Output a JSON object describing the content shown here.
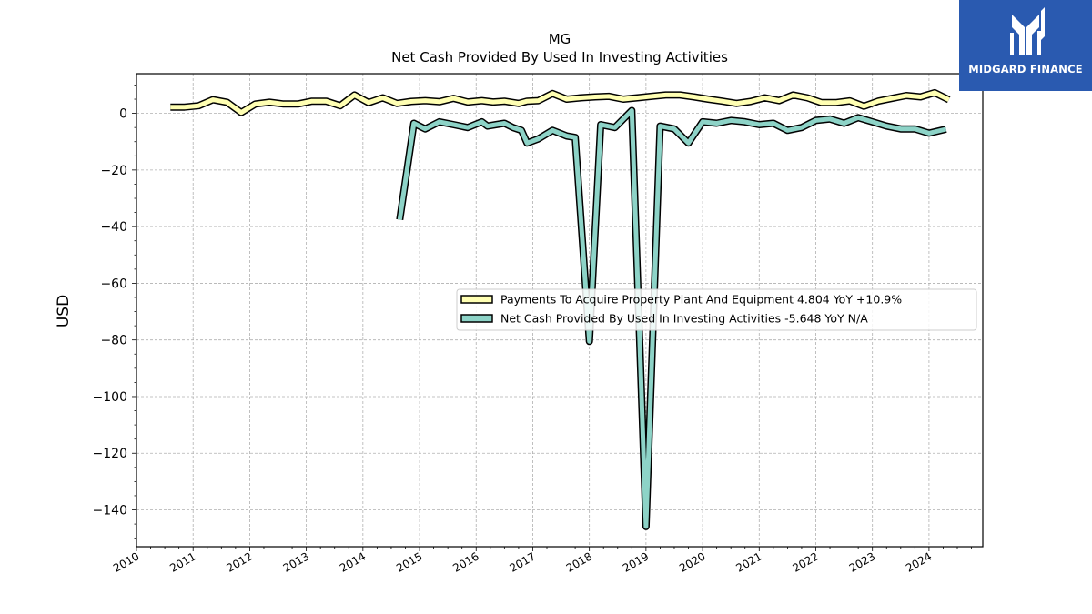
{
  "brand": {
    "name": "MIDGARD FINANCE",
    "logo_icon": "midgard-finance-logo-icon",
    "color": "#2a5ab0"
  },
  "chart_data": {
    "type": "line",
    "title": "MG",
    "subtitle": "Net Cash Provided By Used In Investing Activities",
    "xlabel": "",
    "ylabel": "USD",
    "xlim": [
      2010.0,
      2024.95
    ],
    "ylim": [
      -153,
      14
    ],
    "x_ticks": [
      "2010",
      "2011",
      "2012",
      "2013",
      "2014",
      "2015",
      "2016",
      "2017",
      "2018",
      "2019",
      "2020",
      "2021",
      "2022",
      "2023",
      "2024"
    ],
    "y_ticks": [
      0,
      -20,
      -40,
      -60,
      -80,
      -100,
      -120,
      -140
    ],
    "y_tick_labels": [
      "0",
      "−20",
      "−40",
      "−60",
      "−80",
      "−100",
      "−120",
      "−140"
    ],
    "grid": true,
    "legend_position": "center-right",
    "series": [
      {
        "name": "Payments To Acquire Property Plant And Equipment  4.804 YoY +10.9%",
        "color": "#ffffb3",
        "x": [
          2010.6,
          2010.85,
          2011.1,
          2011.35,
          2011.6,
          2011.85,
          2012.1,
          2012.35,
          2012.6,
          2012.85,
          2013.1,
          2013.35,
          2013.6,
          2013.85,
          2014.1,
          2014.35,
          2014.6,
          2014.85,
          2015.1,
          2015.35,
          2015.6,
          2015.85,
          2016.1,
          2016.3,
          2016.5,
          2016.75,
          2016.9,
          2017.1,
          2017.35,
          2017.6,
          2017.85,
          2018.1,
          2018.35,
          2018.6,
          2018.85,
          2019.1,
          2019.35,
          2019.6,
          2019.85,
          2020.1,
          2020.35,
          2020.6,
          2020.85,
          2021.1,
          2021.35,
          2021.6,
          2021.85,
          2022.1,
          2022.35,
          2022.6,
          2022.85,
          2023.1,
          2023.35,
          2023.6,
          2023.85,
          2024.1,
          2024.35
        ],
        "values": [
          2.2,
          2.2,
          2.7,
          4.8,
          3.9,
          0.3,
          3.3,
          3.9,
          3.3,
          3.3,
          4.3,
          4.3,
          2.7,
          6.5,
          3.8,
          5.5,
          3.5,
          4.2,
          4.5,
          4.1,
          5.3,
          4.0,
          4.5,
          4.0,
          4.3,
          3.5,
          4.3,
          4.5,
          7.0,
          5.0,
          5.5,
          5.8,
          6.0,
          5.0,
          5.5,
          6.0,
          6.5,
          6.5,
          5.8,
          5.0,
          4.3,
          3.5,
          4.2,
          5.5,
          4.5,
          6.5,
          5.5,
          3.8,
          3.8,
          4.4,
          2.5,
          4.3,
          5.3,
          6.3,
          5.8,
          7.3,
          4.8
        ]
      },
      {
        "name": "Net Cash Provided By Used In Investing Activities  -5.648 YoY N/A",
        "color": "#8dd3c7",
        "x": [
          2014.65,
          2014.9,
          2015.1,
          2015.35,
          2015.6,
          2015.85,
          2016.1,
          2016.2,
          2016.35,
          2016.5,
          2016.65,
          2016.8,
          2016.9,
          2017.1,
          2017.35,
          2017.6,
          2017.75,
          2018.0,
          2018.2,
          2018.45,
          2018.75,
          2019.0,
          2019.25,
          2019.5,
          2019.75,
          2020.0,
          2020.25,
          2020.5,
          2020.75,
          2021.0,
          2021.25,
          2021.5,
          2021.75,
          2022.0,
          2022.25,
          2022.5,
          2022.75,
          2023.0,
          2023.25,
          2023.5,
          2023.75,
          2024.0,
          2024.3
        ],
        "values": [
          -37.5,
          -3.5,
          -5.5,
          -3.0,
          -4.0,
          -5.0,
          -3.0,
          -4.5,
          -4.0,
          -3.5,
          -5.0,
          -6.0,
          -10.5,
          -9.0,
          -6.0,
          -8.0,
          -8.5,
          -80.5,
          -4.0,
          -5.0,
          1.0,
          -145.9,
          -4.5,
          -5.5,
          -10.5,
          -3.0,
          -3.5,
          -2.5,
          -3.0,
          -4.0,
          -3.5,
          -6.0,
          -5.0,
          -2.5,
          -2.0,
          -3.5,
          -1.5,
          -3.0,
          -4.5,
          -5.5,
          -5.5,
          -7.0,
          -5.6
        ]
      }
    ]
  }
}
